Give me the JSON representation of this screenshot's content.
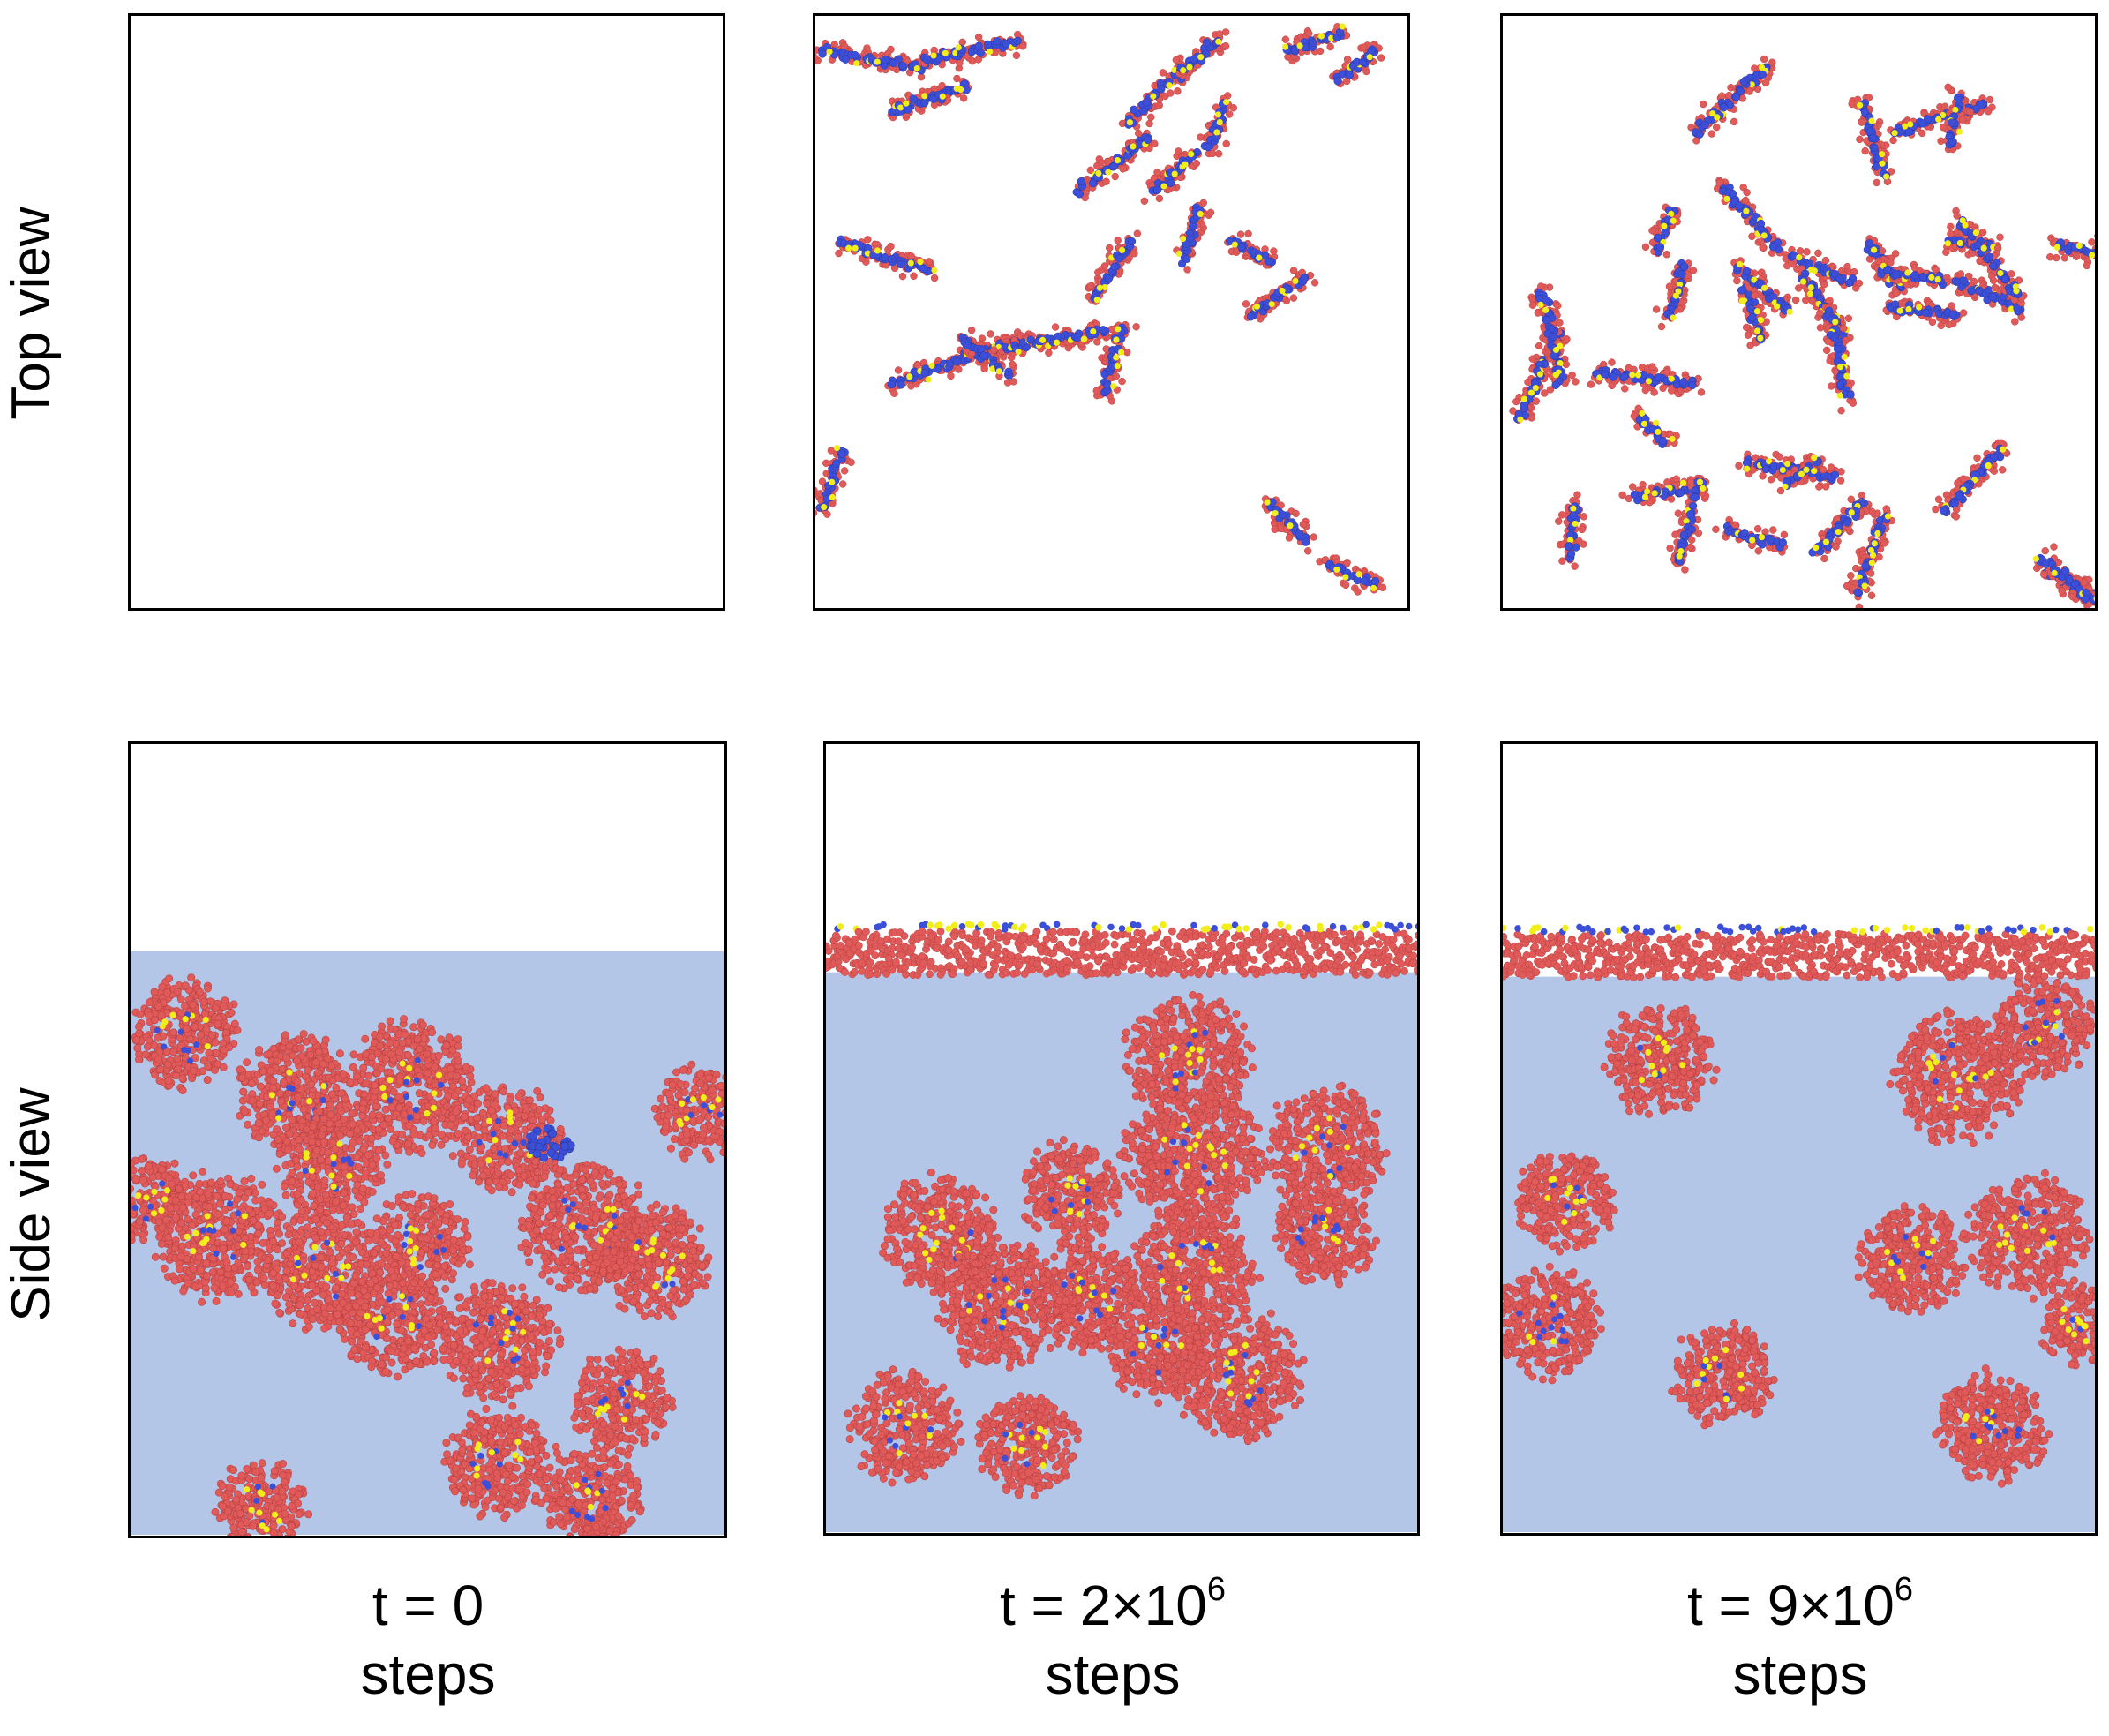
{
  "row_labels": {
    "top": "Top view",
    "side": "Side view"
  },
  "columns": [
    {
      "time_prefix": "t = 0",
      "time_exp": "",
      "unit": "steps"
    },
    {
      "time_prefix": "t = 2×10",
      "time_exp": "6",
      "unit": "steps"
    },
    {
      "time_prefix": "t = 9×10",
      "time_exp": "6",
      "unit": "steps"
    }
  ],
  "colors": {
    "tail": "#e05a5a",
    "head": "#3c4fd8",
    "linker": "#f2ee1c",
    "water": "#b3c6e7",
    "frame": "#000000",
    "background": "#ffffff"
  }
}
